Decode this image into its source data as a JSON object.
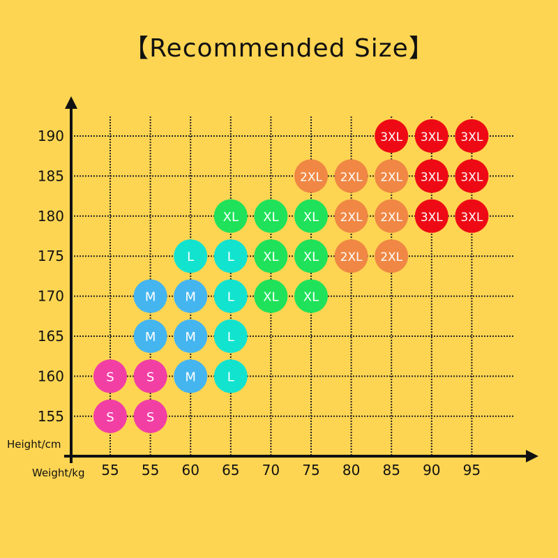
{
  "chart_data": {
    "type": "table",
    "title": "【Recommended Size】",
    "xlabel": "Weight/kg",
    "ylabel": "Height/cm",
    "x_tick_labels": [
      "55",
      "55",
      "60",
      "65",
      "70",
      "75",
      "80",
      "85",
      "90",
      "95"
    ],
    "y_tick_labels": [
      "190",
      "185",
      "180",
      "175",
      "170",
      "165",
      "160",
      "155"
    ],
    "grid": true,
    "rows": [
      {
        "height": "190",
        "sizes": [
          null,
          null,
          null,
          null,
          null,
          null,
          null,
          "3XL",
          "3XL",
          "3XL"
        ]
      },
      {
        "height": "185",
        "sizes": [
          null,
          null,
          null,
          null,
          null,
          "2XL",
          "2XL",
          "2XL",
          "3XL",
          "3XL"
        ]
      },
      {
        "height": "180",
        "sizes": [
          null,
          null,
          null,
          "XL",
          "XL",
          "XL",
          "2XL",
          "2XL",
          "3XL",
          "3XL"
        ]
      },
      {
        "height": "175",
        "sizes": [
          null,
          null,
          "L",
          "L",
          "XL",
          "XL",
          "2XL",
          "2XL",
          null,
          null
        ]
      },
      {
        "height": "170",
        "sizes": [
          null,
          "M",
          "M",
          "L",
          "XL",
          "XL",
          null,
          null,
          null,
          null
        ]
      },
      {
        "height": "165",
        "sizes": [
          null,
          "M",
          "M",
          "L",
          null,
          null,
          null,
          null,
          null,
          null
        ]
      },
      {
        "height": "160",
        "sizes": [
          "S",
          "S",
          "M",
          "L",
          null,
          null,
          null,
          null,
          null,
          null
        ]
      },
      {
        "height": "155",
        "sizes": [
          "S",
          "S",
          null,
          null,
          null,
          null,
          null,
          null,
          null,
          null
        ]
      }
    ],
    "size_colors": {
      "S": "#f23fa4",
      "M": "#45b5f0",
      "L": "#12e3cf",
      "XL": "#1fe25a",
      "2XL": "#f08744",
      "3XL": "#ee0a14"
    },
    "background": "#fed552"
  }
}
